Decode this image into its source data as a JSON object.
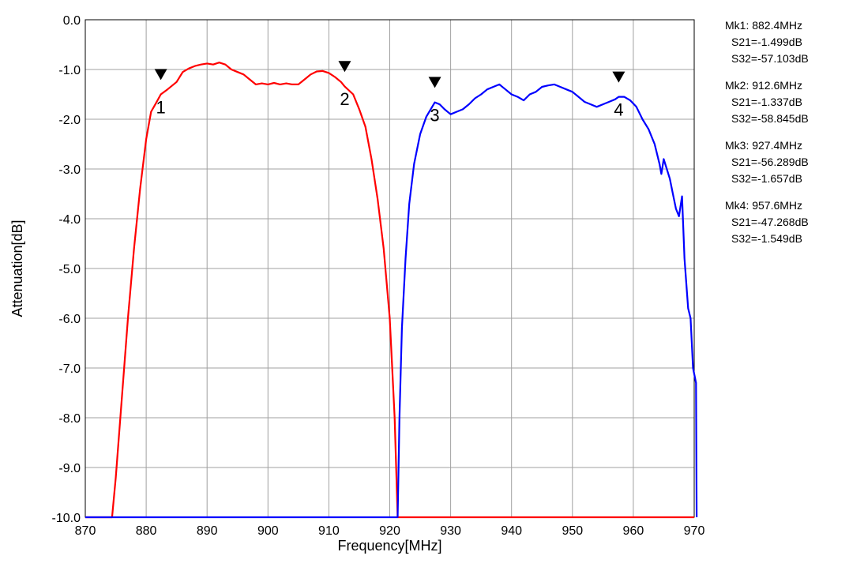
{
  "chart_data": {
    "type": "line",
    "xlabel": "Frequency[MHz]",
    "ylabel": "Attenuation[dB]",
    "xlim": [
      870,
      970
    ],
    "ylim": [
      -10,
      0
    ],
    "grid": true,
    "x_ticks": [
      870,
      880,
      890,
      900,
      910,
      920,
      930,
      940,
      950,
      960,
      970
    ],
    "x_tick_labels": [
      "870",
      "880",
      "890",
      "900",
      "910",
      "920",
      "930",
      "940",
      "950",
      "960",
      "970"
    ],
    "y_ticks": [
      0,
      -1,
      -2,
      -3,
      -4,
      -5,
      -6,
      -7,
      -8,
      -9,
      -10
    ],
    "y_tick_labels": [
      "0.0",
      "-1.0",
      "-2.0",
      "-3.0",
      "-4.0",
      "-5.0",
      "-6.0",
      "-7.0",
      "-8.0",
      "-9.0",
      "-10.0"
    ],
    "series": [
      {
        "color": "#ff0000",
        "points": [
          [
            870,
            -10
          ],
          [
            874.4,
            -10
          ],
          [
            875,
            -9.2
          ],
          [
            876,
            -7.6
          ],
          [
            877,
            -6.0
          ],
          [
            878,
            -4.6
          ],
          [
            879,
            -3.4
          ],
          [
            880,
            -2.4
          ],
          [
            880.8,
            -1.85
          ],
          [
            881.5,
            -1.7
          ],
          [
            882.4,
            -1.5
          ],
          [
            883.5,
            -1.4
          ],
          [
            885,
            -1.25
          ],
          [
            886,
            -1.05
          ],
          [
            887,
            -0.98
          ],
          [
            888,
            -0.93
          ],
          [
            889,
            -0.9
          ],
          [
            890,
            -0.88
          ],
          [
            891,
            -0.9
          ],
          [
            892,
            -0.86
          ],
          [
            893,
            -0.9
          ],
          [
            894,
            -1.0
          ],
          [
            895,
            -1.05
          ],
          [
            896,
            -1.1
          ],
          [
            897,
            -1.2
          ],
          [
            898,
            -1.3
          ],
          [
            899,
            -1.28
          ],
          [
            900,
            -1.3
          ],
          [
            901,
            -1.27
          ],
          [
            902,
            -1.3
          ],
          [
            903,
            -1.28
          ],
          [
            904,
            -1.3
          ],
          [
            905,
            -1.3
          ],
          [
            906,
            -1.2
          ],
          [
            907,
            -1.1
          ],
          [
            908,
            -1.04
          ],
          [
            909,
            -1.03
          ],
          [
            910,
            -1.07
          ],
          [
            911,
            -1.15
          ],
          [
            912,
            -1.25
          ],
          [
            912.6,
            -1.34
          ],
          [
            914,
            -1.5
          ],
          [
            915,
            -1.8
          ],
          [
            916,
            -2.15
          ],
          [
            917,
            -2.8
          ],
          [
            918,
            -3.6
          ],
          [
            919,
            -4.6
          ],
          [
            920,
            -6.0
          ],
          [
            920.8,
            -8.0
          ],
          [
            921.3,
            -10
          ],
          [
            970,
            -10
          ]
        ]
      },
      {
        "color": "#0000ff",
        "points": [
          [
            870,
            -10
          ],
          [
            921.3,
            -10
          ],
          [
            921.6,
            -8.0
          ],
          [
            922,
            -6.2
          ],
          [
            922.6,
            -4.8
          ],
          [
            923.2,
            -3.7
          ],
          [
            924,
            -2.9
          ],
          [
            925,
            -2.3
          ],
          [
            926,
            -1.95
          ],
          [
            927.4,
            -1.66
          ],
          [
            928.2,
            -1.7
          ],
          [
            929,
            -1.8
          ],
          [
            930,
            -1.9
          ],
          [
            931,
            -1.85
          ],
          [
            932,
            -1.8
          ],
          [
            933,
            -1.7
          ],
          [
            934,
            -1.58
          ],
          [
            935,
            -1.5
          ],
          [
            936,
            -1.4
          ],
          [
            937,
            -1.35
          ],
          [
            938,
            -1.3
          ],
          [
            939,
            -1.4
          ],
          [
            940,
            -1.5
          ],
          [
            941,
            -1.55
          ],
          [
            942,
            -1.62
          ],
          [
            943,
            -1.5
          ],
          [
            944,
            -1.45
          ],
          [
            945,
            -1.35
          ],
          [
            946,
            -1.32
          ],
          [
            947,
            -1.3
          ],
          [
            948,
            -1.35
          ],
          [
            949,
            -1.4
          ],
          [
            950,
            -1.45
          ],
          [
            951,
            -1.55
          ],
          [
            952,
            -1.65
          ],
          [
            953,
            -1.7
          ],
          [
            954,
            -1.75
          ],
          [
            955,
            -1.7
          ],
          [
            956,
            -1.65
          ],
          [
            957,
            -1.6
          ],
          [
            957.6,
            -1.55
          ],
          [
            958.5,
            -1.55
          ],
          [
            959.5,
            -1.62
          ],
          [
            960.5,
            -1.75
          ],
          [
            961.5,
            -2.0
          ],
          [
            962.5,
            -2.2
          ],
          [
            963.5,
            -2.5
          ],
          [
            964.3,
            -2.9
          ],
          [
            964.6,
            -3.1
          ],
          [
            965,
            -2.8
          ],
          [
            965.5,
            -3.0
          ],
          [
            966,
            -3.2
          ],
          [
            966.5,
            -3.5
          ],
          [
            967,
            -3.8
          ],
          [
            967.5,
            -3.95
          ],
          [
            968,
            -3.55
          ],
          [
            968.4,
            -4.8
          ],
          [
            969,
            -5.8
          ],
          [
            969.4,
            -6.0
          ],
          [
            969.8,
            -7.0
          ],
          [
            970.3,
            -7.3
          ],
          [
            970.4,
            -10
          ]
        ]
      }
    ],
    "markers": [
      {
        "label": "1",
        "x": 882.4,
        "y": -1.499
      },
      {
        "label": "2",
        "x": 912.6,
        "y": -1.337
      },
      {
        "label": "3",
        "x": 927.4,
        "y": -1.657
      },
      {
        "label": "4",
        "x": 957.6,
        "y": -1.549
      }
    ]
  },
  "marker_info": [
    {
      "title": "Mk1:  882.4MHz",
      "s21": "S21=-1.499dB",
      "s32": "S32=-57.103dB"
    },
    {
      "title": "Mk2:  912.6MHz",
      "s21": "S21=-1.337dB",
      "s32": "S32=-58.845dB"
    },
    {
      "title": "Mk3:  927.4MHz",
      "s21": "S21=-56.289dB",
      "s32": "S32=-1.657dB"
    },
    {
      "title": "Mk4:  957.6MHz",
      "s21": "S21=-47.268dB",
      "s32": "S32=-1.549dB"
    }
  ]
}
